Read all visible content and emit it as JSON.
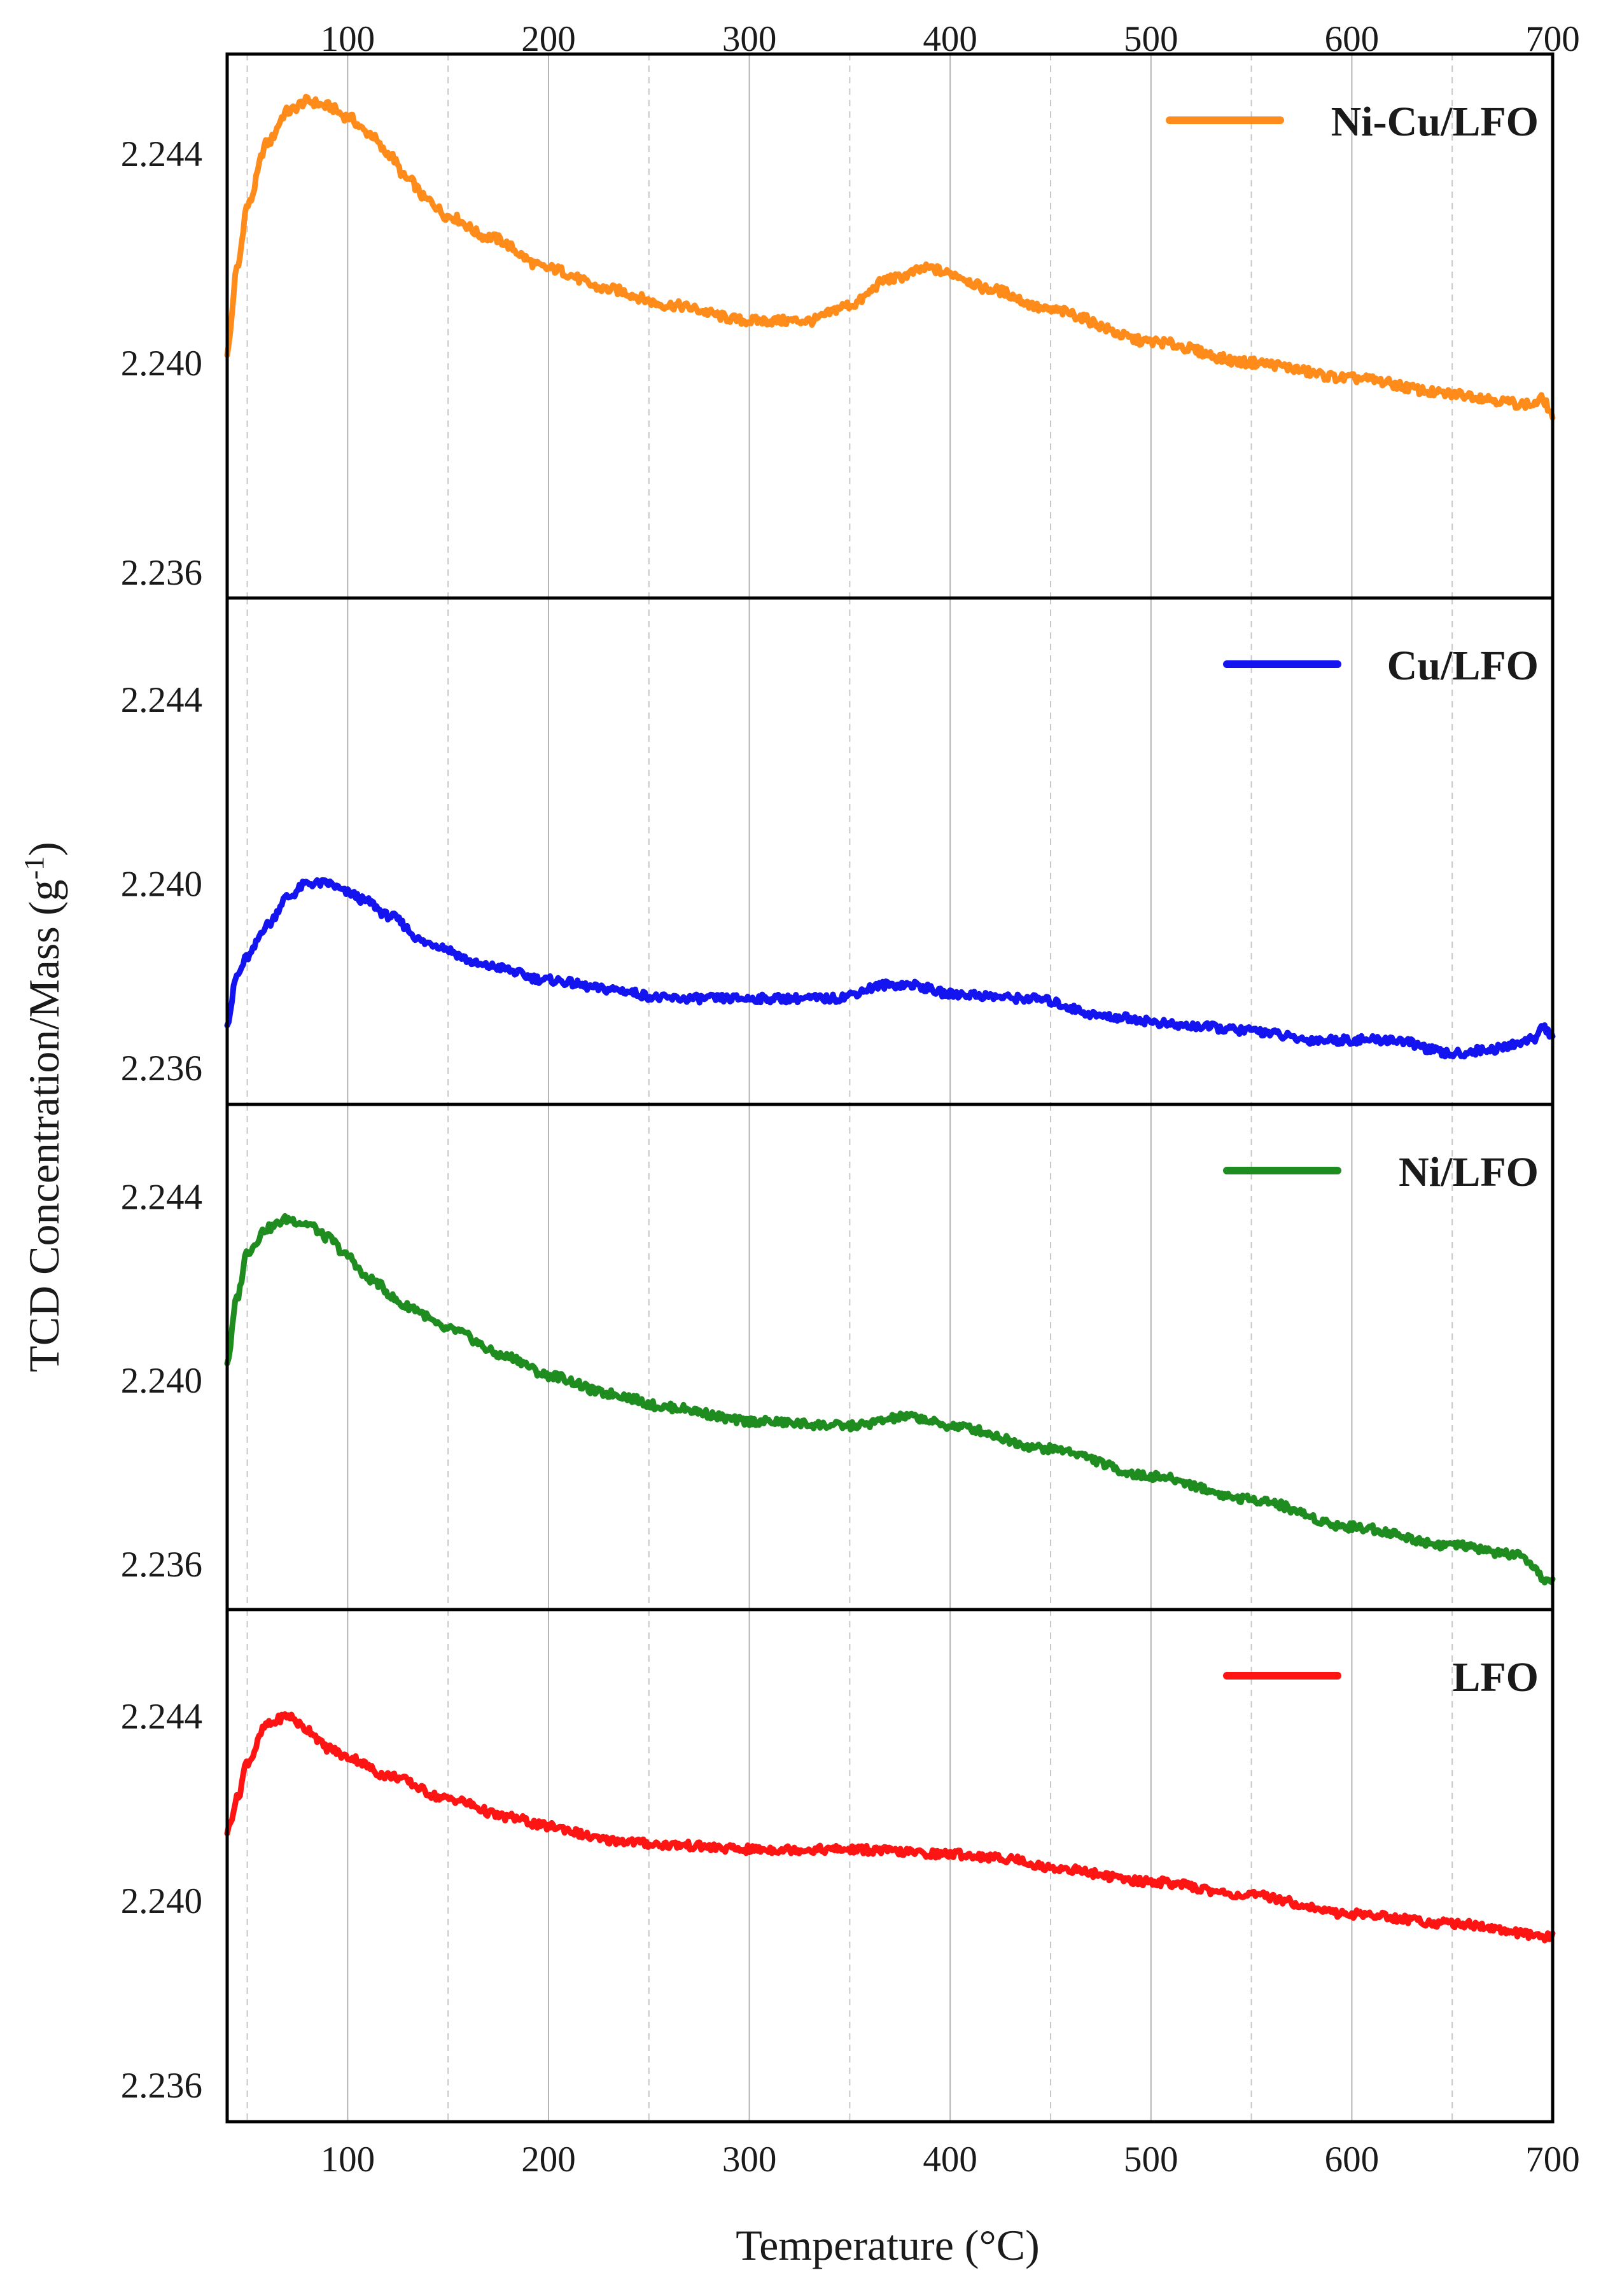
{
  "chart_data": {
    "type": "line",
    "xlabel": "Temperature (°C)",
    "ylabel": "TCD Concentration/Mass (g",
    "ylabel_sup": "-1",
    "ylabel_end": ")",
    "xlim": [
      40,
      700
    ],
    "x_ticks": [
      100,
      200,
      300,
      400,
      500,
      600,
      700
    ],
    "x_tick_labels": [
      "100",
      "200",
      "300",
      "400",
      "500",
      "600",
      "700"
    ],
    "x_minor_dashed": [
      50,
      150,
      250,
      350,
      450,
      550,
      650
    ],
    "grid": true,
    "legend_position": "top-right",
    "panels": [
      {
        "name": "Ni-Cu/LFO",
        "color": "#FF8C1A",
        "ylim": [
          2.2355,
          2.2459
        ],
        "y_ticks": [
          2.236,
          2.24,
          2.244
        ],
        "y_tick_labels": [
          "2.236",
          "2.240",
          "2.244"
        ],
        "points": [
          [
            40,
            2.2402
          ],
          [
            45,
            2.2418
          ],
          [
            50,
            2.243
          ],
          [
            60,
            2.2442
          ],
          [
            70,
            2.2448
          ],
          [
            80,
            2.245
          ],
          [
            90,
            2.2449
          ],
          [
            100,
            2.2447
          ],
          [
            110,
            2.2444
          ],
          [
            120,
            2.244
          ],
          [
            130,
            2.2435
          ],
          [
            140,
            2.2431
          ],
          [
            150,
            2.2428
          ],
          [
            170,
            2.2424
          ],
          [
            200,
            2.2418
          ],
          [
            230,
            2.2414
          ],
          [
            260,
            2.2411
          ],
          [
            300,
            2.2408
          ],
          [
            330,
            2.2408
          ],
          [
            350,
            2.2411
          ],
          [
            370,
            2.2416
          ],
          [
            390,
            2.2418
          ],
          [
            400,
            2.2417
          ],
          [
            420,
            2.2414
          ],
          [
            450,
            2.241
          ],
          [
            500,
            2.2404
          ],
          [
            550,
            2.24
          ],
          [
            600,
            2.2397
          ],
          [
            650,
            2.2394
          ],
          [
            690,
            2.2392
          ],
          [
            695,
            2.2393
          ],
          [
            700,
            2.239
          ]
        ]
      },
      {
        "name": "Cu/LFO",
        "color": "#1414F0",
        "ylim": [
          2.2352,
          2.2462
        ],
        "y_ticks": [
          2.236,
          2.24,
          2.244
        ],
        "y_tick_labels": [
          "2.236",
          "2.240",
          "2.244"
        ],
        "points": [
          [
            40,
            2.237
          ],
          [
            45,
            2.238
          ],
          [
            50,
            2.2384
          ],
          [
            60,
            2.2391
          ],
          [
            70,
            2.2397
          ],
          [
            80,
            2.24
          ],
          [
            90,
            2.24
          ],
          [
            100,
            2.2398
          ],
          [
            110,
            2.2396
          ],
          [
            120,
            2.2393
          ],
          [
            140,
            2.2387
          ],
          [
            170,
            2.2382
          ],
          [
            200,
            2.2379
          ],
          [
            230,
            2.2377
          ],
          [
            260,
            2.2375
          ],
          [
            300,
            2.2375
          ],
          [
            340,
            2.2375
          ],
          [
            370,
            2.2378
          ],
          [
            380,
            2.2378
          ],
          [
            400,
            2.2376
          ],
          [
            440,
            2.2375
          ],
          [
            480,
            2.2371
          ],
          [
            520,
            2.2369
          ],
          [
            550,
            2.2368
          ],
          [
            580,
            2.2366
          ],
          [
            620,
            2.2366
          ],
          [
            650,
            2.2363
          ],
          [
            670,
            2.2364
          ],
          [
            690,
            2.2366
          ],
          [
            695,
            2.2369
          ],
          [
            700,
            2.2367
          ]
        ]
      },
      {
        "name": "Ni/LFO",
        "color": "#1E8C1E",
        "ylim": [
          2.235,
          2.246
        ],
        "y_ticks": [
          2.236,
          2.24,
          2.244
        ],
        "y_tick_labels": [
          "2.236",
          "2.240",
          "2.244"
        ],
        "points": [
          [
            40,
            2.2404
          ],
          [
            45,
            2.2418
          ],
          [
            50,
            2.2428
          ],
          [
            60,
            2.2433
          ],
          [
            70,
            2.2435
          ],
          [
            80,
            2.2434
          ],
          [
            90,
            2.2431
          ],
          [
            100,
            2.2427
          ],
          [
            110,
            2.2422
          ],
          [
            130,
            2.2416
          ],
          [
            150,
            2.2411
          ],
          [
            180,
            2.2405
          ],
          [
            200,
            2.2401
          ],
          [
            230,
            2.2397
          ],
          [
            260,
            2.2394
          ],
          [
            300,
            2.2391
          ],
          [
            350,
            2.239
          ],
          [
            380,
            2.2392
          ],
          [
            400,
            2.239
          ],
          [
            450,
            2.2385
          ],
          [
            500,
            2.2379
          ],
          [
            550,
            2.2374
          ],
          [
            600,
            2.2368
          ],
          [
            650,
            2.2364
          ],
          [
            680,
            2.2362
          ],
          [
            700,
            2.2356
          ]
        ]
      },
      {
        "name": "LFO",
        "color": "#FF1414",
        "ylim": [
          2.2352,
          2.2463
        ],
        "y_ticks": [
          2.236,
          2.24,
          2.244
        ],
        "y_tick_labels": [
          "2.236",
          "2.240",
          "2.244"
        ],
        "points": [
          [
            40,
            2.2415
          ],
          [
            45,
            2.2422
          ],
          [
            50,
            2.243
          ],
          [
            60,
            2.2438
          ],
          [
            70,
            2.244
          ],
          [
            80,
            2.2437
          ],
          [
            90,
            2.2433
          ],
          [
            100,
            2.2431
          ],
          [
            120,
            2.2427
          ],
          [
            150,
            2.2422
          ],
          [
            180,
            2.2418
          ],
          [
            200,
            2.2416
          ],
          [
            230,
            2.2413
          ],
          [
            260,
            2.2412
          ],
          [
            300,
            2.2411
          ],
          [
            350,
            2.2411
          ],
          [
            400,
            2.241
          ],
          [
            430,
            2.2409
          ],
          [
            450,
            2.2407
          ],
          [
            500,
            2.2404
          ],
          [
            550,
            2.2401
          ],
          [
            600,
            2.2397
          ],
          [
            650,
            2.2395
          ],
          [
            700,
            2.2392
          ]
        ]
      }
    ]
  }
}
